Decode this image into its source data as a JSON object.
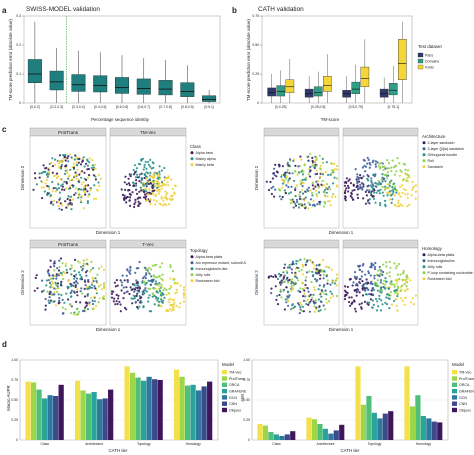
{
  "colors": {
    "teal": "#1f7f7f",
    "box_dark": "#2d3a6b",
    "box_green": "#2e9e86",
    "box_yellow": "#f4d53a",
    "green_line": "#3aa33a",
    "strip_bg": "#d9d9d9",
    "pt_purple": "#3b1a5a",
    "pt_teal": "#2a8f8a",
    "pt_yellow": "#f0d23a",
    "pt_lime": "#8fd14b",
    "pt_blue": "#3d5f9a"
  },
  "panels": {
    "a": "a",
    "b": "b",
    "c": "c",
    "d": "d"
  },
  "chart_data": [
    {
      "id": "a",
      "type": "box",
      "title": "SWISS-MODEL validation",
      "xlabel": "Percentage sequence identity",
      "ylabel": "TM-score prediction error (absolute value)",
      "ylim": [
        0,
        0.3
      ],
      "categories": [
        "[0,0.2]",
        "[0.2,0.3]",
        "[0.3,0.4]",
        "[0.4,0.5]",
        "[0.5,0.6]",
        "[0.6,0.7]",
        "[0.7,0.8]",
        "[0.8,0.9]",
        "[0.9,1]"
      ],
      "boxes": [
        {
          "lo": 0.0,
          "q1": 0.07,
          "med": 0.1,
          "q3": 0.15,
          "hi": 0.28
        },
        {
          "lo": 0.0,
          "q1": 0.045,
          "med": 0.073,
          "q3": 0.11,
          "hi": 0.19
        },
        {
          "lo": 0.0,
          "q1": 0.04,
          "med": 0.063,
          "q3": 0.098,
          "hi": 0.18
        },
        {
          "lo": 0.0,
          "q1": 0.038,
          "med": 0.06,
          "q3": 0.094,
          "hi": 0.175
        },
        {
          "lo": 0.0,
          "q1": 0.033,
          "med": 0.053,
          "q3": 0.088,
          "hi": 0.165
        },
        {
          "lo": 0.0,
          "q1": 0.03,
          "med": 0.05,
          "q3": 0.083,
          "hi": 0.155
        },
        {
          "lo": 0.0,
          "q1": 0.028,
          "med": 0.048,
          "q3": 0.078,
          "hi": 0.148
        },
        {
          "lo": 0.0,
          "q1": 0.022,
          "med": 0.04,
          "q3": 0.07,
          "hi": 0.13
        },
        {
          "lo": 0.0,
          "q1": 0.005,
          "med": 0.012,
          "q3": 0.025,
          "hi": 0.045
        }
      ]
    },
    {
      "id": "b",
      "type": "box",
      "title": "CATH validation",
      "xlabel": "TM-score",
      "ylabel": "TM-score prediction error (absolute value)",
      "ylim": [
        0,
        0.75
      ],
      "categories": [
        "[0,0.25]",
        "[0.25,0.5]",
        "[0.5,0.75]",
        "[0.75,1]"
      ],
      "legend_title": "Test dataset",
      "series": [
        {
          "name": "Pairs",
          "color": "#2d3a6b",
          "boxes": [
            {
              "lo": 0.0,
              "q1": 0.06,
              "med": 0.09,
              "q3": 0.13,
              "hi": 0.25
            },
            {
              "lo": 0.0,
              "q1": 0.05,
              "med": 0.08,
              "q3": 0.12,
              "hi": 0.23
            },
            {
              "lo": 0.0,
              "q1": 0.05,
              "med": 0.08,
              "q3": 0.11,
              "hi": 0.23
            },
            {
              "lo": 0.0,
              "q1": 0.05,
              "med": 0.08,
              "q3": 0.12,
              "hi": 0.22
            }
          ]
        },
        {
          "name": "Domains",
          "color": "#2e9e86",
          "boxes": [
            {
              "lo": 0.0,
              "q1": 0.06,
              "med": 0.1,
              "q3": 0.15,
              "hi": 0.28
            },
            {
              "lo": 0.0,
              "q1": 0.06,
              "med": 0.09,
              "q3": 0.14,
              "hi": 0.27
            },
            {
              "lo": 0.0,
              "q1": 0.08,
              "med": 0.12,
              "q3": 0.18,
              "hi": 0.33
            },
            {
              "lo": 0.0,
              "q1": 0.07,
              "med": 0.11,
              "q3": 0.17,
              "hi": 0.32
            }
          ]
        },
        {
          "name": "Folds",
          "color": "#f4d53a",
          "boxes": [
            {
              "lo": 0.0,
              "q1": 0.09,
              "med": 0.14,
              "q3": 0.2,
              "hi": 0.38
            },
            {
              "lo": 0.0,
              "q1": 0.1,
              "med": 0.15,
              "q3": 0.23,
              "hi": 0.42
            },
            {
              "lo": 0.0,
              "q1": 0.14,
              "med": 0.21,
              "q3": 0.31,
              "hi": 0.55
            },
            {
              "lo": 0.0,
              "q1": 0.2,
              "med": 0.34,
              "q3": 0.55,
              "hi": 0.7
            }
          ]
        }
      ]
    },
    {
      "id": "c",
      "type": "scatter",
      "xlabel": "Dimension 1",
      "ylabel": "Dimension 2",
      "facets": [
        {
          "strips": [
            "ProtTrans",
            "TM-Vec"
          ],
          "legend_title": "Class",
          "legend": [
            {
              "label": "Alpha beta",
              "color": "#3b1a5a"
            },
            {
              "label": "Mainly alpha",
              "color": "#2a8f8a"
            },
            {
              "label": "Mainly beta",
              "color": "#f0d23a"
            }
          ]
        },
        {
          "strips": [
            "",
            ""
          ],
          "legend_title": "Architecture",
          "legend": [
            {
              "label": "2-layer sandwich",
              "color": "#3b1a5a"
            },
            {
              "label": "3-layer (ββα) sandwich",
              "color": "#3d5f9a"
            },
            {
              "label": "Orthogonal bundle",
              "color": "#2a8f8a"
            },
            {
              "label": "Roll",
              "color": "#8fd14b"
            },
            {
              "label": "Sandwich",
              "color": "#f0d23a"
            }
          ]
        },
        {
          "strips": [
            "ProtTrans",
            "T-Vec"
          ],
          "legend_title": "Topology",
          "legend": [
            {
              "label": "Alpha-beta plaits",
              "color": "#3b1a5a"
            },
            {
              "label": "Arc repressor mutant, subunit A",
              "color": "#3d5f9a"
            },
            {
              "label": "Immunoglobulin-like",
              "color": "#2a8f8a"
            },
            {
              "label": "Jelly rolls",
              "color": "#8fd14b"
            },
            {
              "label": "Rossmann fold",
              "color": "#f0d23a"
            }
          ]
        },
        {
          "strips": [
            "",
            ""
          ],
          "legend_title": "Homology",
          "legend": [
            {
              "label": "Alpha-beta plaits",
              "color": "#3b1a5a"
            },
            {
              "label": "Immunoglobulins",
              "color": "#3d5f9a"
            },
            {
              "label": "Jelly rolls",
              "color": "#2a8f8a"
            },
            {
              "label": "P-loop containing nucleotide triphosphate hydrolases",
              "color": "#8fd14b"
            },
            {
              "label": "Rossmann fold",
              "color": "#f0d23a"
            }
          ]
        }
      ]
    },
    {
      "id": "d-left",
      "type": "bar",
      "xlabel": "CATH tier",
      "ylabel": "Macro AUPR",
      "ylim": [
        0,
        1.0
      ],
      "yticks": [
        "0",
        "0.25",
        "0.50",
        "0.75",
        "1.00"
      ],
      "categories": [
        "Class",
        "Architecture",
        "Topology",
        "Homology"
      ],
      "series": [
        {
          "name": "TM-Vec",
          "color": "#f4e04a",
          "values": [
            0.73,
            0.74,
            0.92,
            0.88
          ]
        },
        {
          "name": "ProtTrans",
          "color": "#9ed64a",
          "values": [
            0.72,
            0.62,
            0.84,
            0.79
          ]
        },
        {
          "name": "ORCA",
          "color": "#4fbf7a",
          "values": [
            0.63,
            0.58,
            0.78,
            0.68
          ]
        },
        {
          "name": "GRAFENE",
          "color": "#2aa39b",
          "values": [
            0.52,
            0.6,
            0.74,
            0.69
          ]
        },
        {
          "name": "GCN",
          "color": "#2d7a9e",
          "values": [
            0.56,
            0.51,
            0.79,
            0.62
          ]
        },
        {
          "name": "CNN",
          "color": "#3c4a8c",
          "values": [
            0.55,
            0.52,
            0.76,
            0.67
          ]
        },
        {
          "name": "Cliques",
          "color": "#3e1659",
          "values": [
            0.69,
            0.63,
            0.75,
            0.73
          ]
        }
      ]
    },
    {
      "id": "d-right",
      "type": "bar",
      "xlabel": "CATH tier",
      "ylabel": "AMI",
      "ylim": [
        0,
        1.0
      ],
      "yticks": [
        "0",
        "0.25",
        "0.50",
        "0.75",
        "1.00"
      ],
      "categories": [
        "Class",
        "Architecture",
        "Topology",
        "Homology"
      ],
      "series": [
        {
          "name": "TM-Vec",
          "color": "#f4e04a",
          "values": [
            0.2,
            0.28,
            0.92,
            0.92
          ]
        },
        {
          "name": "ProtTrans",
          "color": "#9ed64a",
          "values": [
            0.18,
            0.26,
            0.44,
            0.42
          ]
        },
        {
          "name": "ORCA",
          "color": "#4fbf7a",
          "values": [
            0.1,
            0.2,
            0.55,
            0.56
          ]
        },
        {
          "name": "GRAFENE",
          "color": "#2aa39b",
          "values": [
            0.07,
            0.14,
            0.34,
            0.3
          ]
        },
        {
          "name": "GCN",
          "color": "#2d7a9e",
          "values": [
            0.05,
            0.08,
            0.27,
            0.27
          ]
        },
        {
          "name": "CNN",
          "color": "#3c4a8c",
          "values": [
            0.07,
            0.12,
            0.33,
            0.23
          ]
        },
        {
          "name": "Cliques",
          "color": "#3e1659",
          "values": [
            0.11,
            0.19,
            0.36,
            0.22
          ]
        }
      ]
    }
  ]
}
